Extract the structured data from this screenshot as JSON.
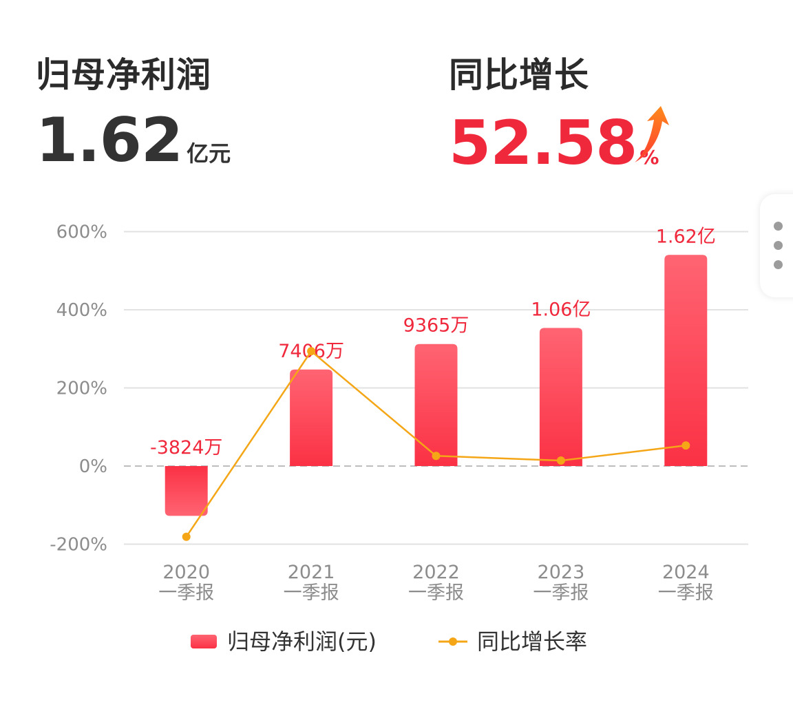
{
  "header": {
    "profit": {
      "title": "归母净利润",
      "value": "1.62",
      "unit": "亿元"
    },
    "growth": {
      "title": "同比增长",
      "value": "52.58",
      "unit": "%"
    }
  },
  "colors": {
    "bar_top": "#ff6472",
    "bar_bottom": "#fb3145",
    "line": "#f5a617",
    "value_label": "#f0283c",
    "axis_text": "#8c8c8c",
    "grid": "#e2e2e2"
  },
  "chart_data": {
    "type": "bar",
    "categories": [
      [
        "2020",
        "一季报"
      ],
      [
        "2021",
        "一季报"
      ],
      [
        "2022",
        "一季报"
      ],
      [
        "2023",
        "一季报"
      ],
      [
        "2024",
        "一季报"
      ]
    ],
    "series": [
      {
        "name": "归母净利润(元)",
        "type": "bar",
        "values_yuan": [
          -38240000,
          74060000,
          93650000,
          106000000,
          162000000
        ],
        "labels": [
          "-3824万",
          "7406万",
          "9365万",
          "1.06亿",
          "1.62亿"
        ]
      },
      {
        "name": "同比增长率",
        "type": "line",
        "values_percent": [
          -181,
          294,
          26,
          14,
          52.58
        ]
      }
    ],
    "y_axis": {
      "ticks": [
        600,
        400,
        200,
        0,
        -200
      ],
      "tick_labels": [
        "600%",
        "400%",
        "200%",
        "0%",
        "-200%"
      ],
      "range": [
        -200,
        600
      ]
    },
    "bar_value_range_yuan": [
      -60000000,
      180000000
    ],
    "legend": {
      "position": "bottom-center"
    },
    "grid": true
  }
}
